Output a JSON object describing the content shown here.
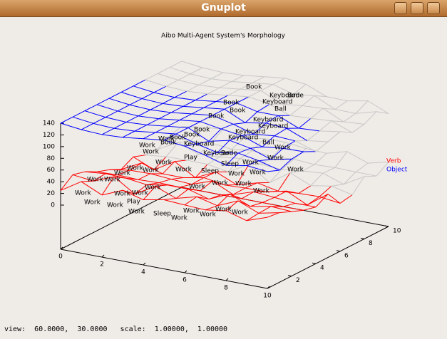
{
  "window": {
    "title": "Gnuplot"
  },
  "plot": {
    "title": "Aibo Multi-Agent System's Morphology",
    "zticks": [
      0,
      20,
      40,
      60,
      80,
      100,
      120,
      140
    ],
    "xticks": [
      0,
      2,
      4,
      6,
      8,
      10
    ],
    "yticks": [
      2,
      4,
      6,
      8,
      10
    ],
    "legend": [
      {
        "name": "Verb",
        "color": "#ff0000"
      },
      {
        "name": "Object",
        "color": "#0000ff"
      }
    ],
    "object_labels": [
      "Book",
      "Keyboard",
      "Bone",
      "Book",
      "Keyboard",
      "Ball",
      "Book",
      "Book",
      "Keyboard",
      "Keyboard",
      "Book",
      "Book",
      "Keyboard",
      "Keyboard",
      "Book",
      "Keyboard",
      "Keyboard",
      "Bone",
      "Ball",
      "Book"
    ],
    "verb_labels": [
      "Work",
      "Work",
      "Work",
      "Play",
      "Work",
      "Work",
      "Work",
      "Work",
      "Work",
      "Work",
      "Work",
      "Work",
      "Work",
      "Work",
      "Work",
      "Work",
      "Work",
      "Play",
      "Sleep",
      "Work",
      "Work",
      "Work",
      "Work",
      "Work",
      "Sleep",
      "Work",
      "Work",
      "Work",
      "Work",
      "Work",
      "Work",
      "Work",
      "Work",
      "Work",
      "Sleep",
      "Work",
      "Work"
    ]
  },
  "status": {
    "text": "view:  60.0000,  30.0000   scale:  1.00000,  1.00000"
  }
}
